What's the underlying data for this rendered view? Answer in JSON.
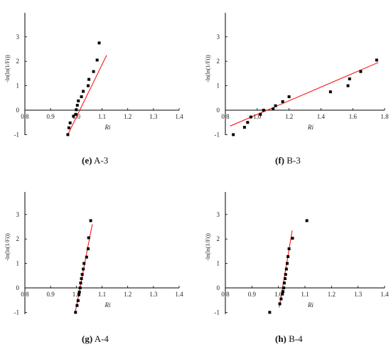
{
  "captions": [
    {
      "letter": "(e)",
      "name": "A-3"
    },
    {
      "letter": "(f)",
      "name": "B-3"
    },
    {
      "letter": "(g)",
      "name": "A-4"
    },
    {
      "letter": "(h)",
      "name": "B-4"
    }
  ],
  "chart_data": [
    {
      "panel": "e",
      "type": "scatter",
      "xlabel": "Ri",
      "ylabel": "-ln(ln(1/Fi))",
      "xlim": [
        0.8,
        1.4
      ],
      "ylim": [
        -1.5,
        3.5
      ],
      "xticks": [
        "0.8",
        "0.9",
        "1.0",
        "1.1",
        "1.2",
        "1.3",
        "1.4"
      ],
      "yticks": [
        "-1",
        "0",
        "1",
        "2",
        "3"
      ],
      "points": [
        [
          0.967,
          -1.0
        ],
        [
          0.971,
          -0.72
        ],
        [
          0.976,
          -0.52
        ],
        [
          0.989,
          -0.25
        ],
        [
          0.998,
          -0.17
        ],
        [
          1.0,
          0.02
        ],
        [
          1.004,
          0.2
        ],
        [
          1.008,
          0.38
        ],
        [
          1.02,
          0.55
        ],
        [
          1.027,
          0.77
        ],
        [
          1.046,
          1.0
        ],
        [
          1.049,
          1.26
        ],
        [
          1.067,
          1.58
        ],
        [
          1.081,
          2.05
        ],
        [
          1.089,
          2.75
        ]
      ],
      "fit": [
        [
          0.967,
          -1.0
        ],
        [
          1.118,
          2.25
        ]
      ],
      "marker_color": "#000000",
      "fit_color": "#ff0000"
    },
    {
      "panel": "f",
      "type": "scatter",
      "xlabel": "Ri",
      "ylabel": "-ln(ln(1/Fi))",
      "xlim": [
        0.8,
        1.8
      ],
      "ylim": [
        -1.5,
        3.5
      ],
      "xticks": [
        "0.8",
        "1.0",
        "1.2",
        "1.4",
        "1.6",
        "1.8"
      ],
      "yticks": [
        "-1",
        "0",
        "1",
        "2",
        "3"
      ],
      "points": [
        [
          0.85,
          -1.0
        ],
        [
          0.92,
          -0.7
        ],
        [
          0.94,
          -0.5
        ],
        [
          0.96,
          -0.28
        ],
        [
          1.02,
          -0.17
        ],
        [
          1.04,
          0.0
        ],
        [
          1.1,
          0.05
        ],
        [
          1.115,
          0.18
        ],
        [
          1.16,
          0.35
        ],
        [
          1.2,
          0.55
        ],
        [
          1.46,
          0.75
        ],
        [
          1.57,
          1.0
        ],
        [
          1.58,
          1.28
        ],
        [
          1.65,
          1.58
        ],
        [
          1.75,
          2.05
        ]
      ],
      "fit": [
        [
          0.83,
          -0.65
        ],
        [
          1.76,
          1.95
        ]
      ],
      "marker_color": "#000000",
      "fit_color": "#ff0000"
    },
    {
      "panel": "g",
      "type": "scatter",
      "xlabel": "Ri",
      "ylabel": "-ln(ln(1/Fi))",
      "xlim": [
        0.8,
        1.4
      ],
      "ylim": [
        -1.5,
        3.5
      ],
      "xticks": [
        "0.8",
        "0.9",
        "1.0",
        "1.1",
        "1.2",
        "1.3",
        "1.4"
      ],
      "yticks": [
        "-1",
        "0",
        "1",
        "2",
        "3"
      ],
      "points": [
        [
          0.997,
          -1.0
        ],
        [
          1.003,
          -0.72
        ],
        [
          1.007,
          -0.52
        ],
        [
          1.01,
          -0.28
        ],
        [
          1.012,
          -0.17
        ],
        [
          1.015,
          0.0
        ],
        [
          1.017,
          0.2
        ],
        [
          1.02,
          0.38
        ],
        [
          1.023,
          0.55
        ],
        [
          1.027,
          0.77
        ],
        [
          1.03,
          1.0
        ],
        [
          1.04,
          1.26
        ],
        [
          1.046,
          1.6
        ],
        [
          1.048,
          2.05
        ],
        [
          1.056,
          2.75
        ]
      ],
      "fit": [
        [
          0.995,
          -1.05
        ],
        [
          1.062,
          2.6
        ]
      ],
      "marker_color": "#000000",
      "fit_color": "#ff0000"
    },
    {
      "panel": "h",
      "type": "scatter",
      "xlabel": "Ri",
      "ylabel": "-ln(ln(1/Fi))",
      "xlim": [
        0.8,
        1.4
      ],
      "ylim": [
        -1.5,
        3.5
      ],
      "xticks": [
        "0.8",
        "0.9",
        "1.0",
        "1.1",
        "1.2",
        "1.3",
        "1.4"
      ],
      "yticks": [
        "-1",
        "0",
        "1",
        "2",
        "3"
      ],
      "points": [
        [
          0.967,
          -1.0
        ],
        [
          1.005,
          -0.65
        ],
        [
          1.01,
          -0.45
        ],
        [
          1.015,
          -0.25
        ],
        [
          1.017,
          -0.15
        ],
        [
          1.02,
          0.0
        ],
        [
          1.022,
          0.2
        ],
        [
          1.025,
          0.38
        ],
        [
          1.027,
          0.55
        ],
        [
          1.03,
          0.77
        ],
        [
          1.033,
          1.0
        ],
        [
          1.036,
          1.28
        ],
        [
          1.04,
          1.6
        ],
        [
          1.053,
          2.03
        ],
        [
          1.107,
          2.75
        ]
      ],
      "fit": [
        [
          1.003,
          -0.8
        ],
        [
          1.052,
          2.35
        ]
      ],
      "marker_color": "#000000",
      "fit_color": "#ff0000"
    }
  ]
}
